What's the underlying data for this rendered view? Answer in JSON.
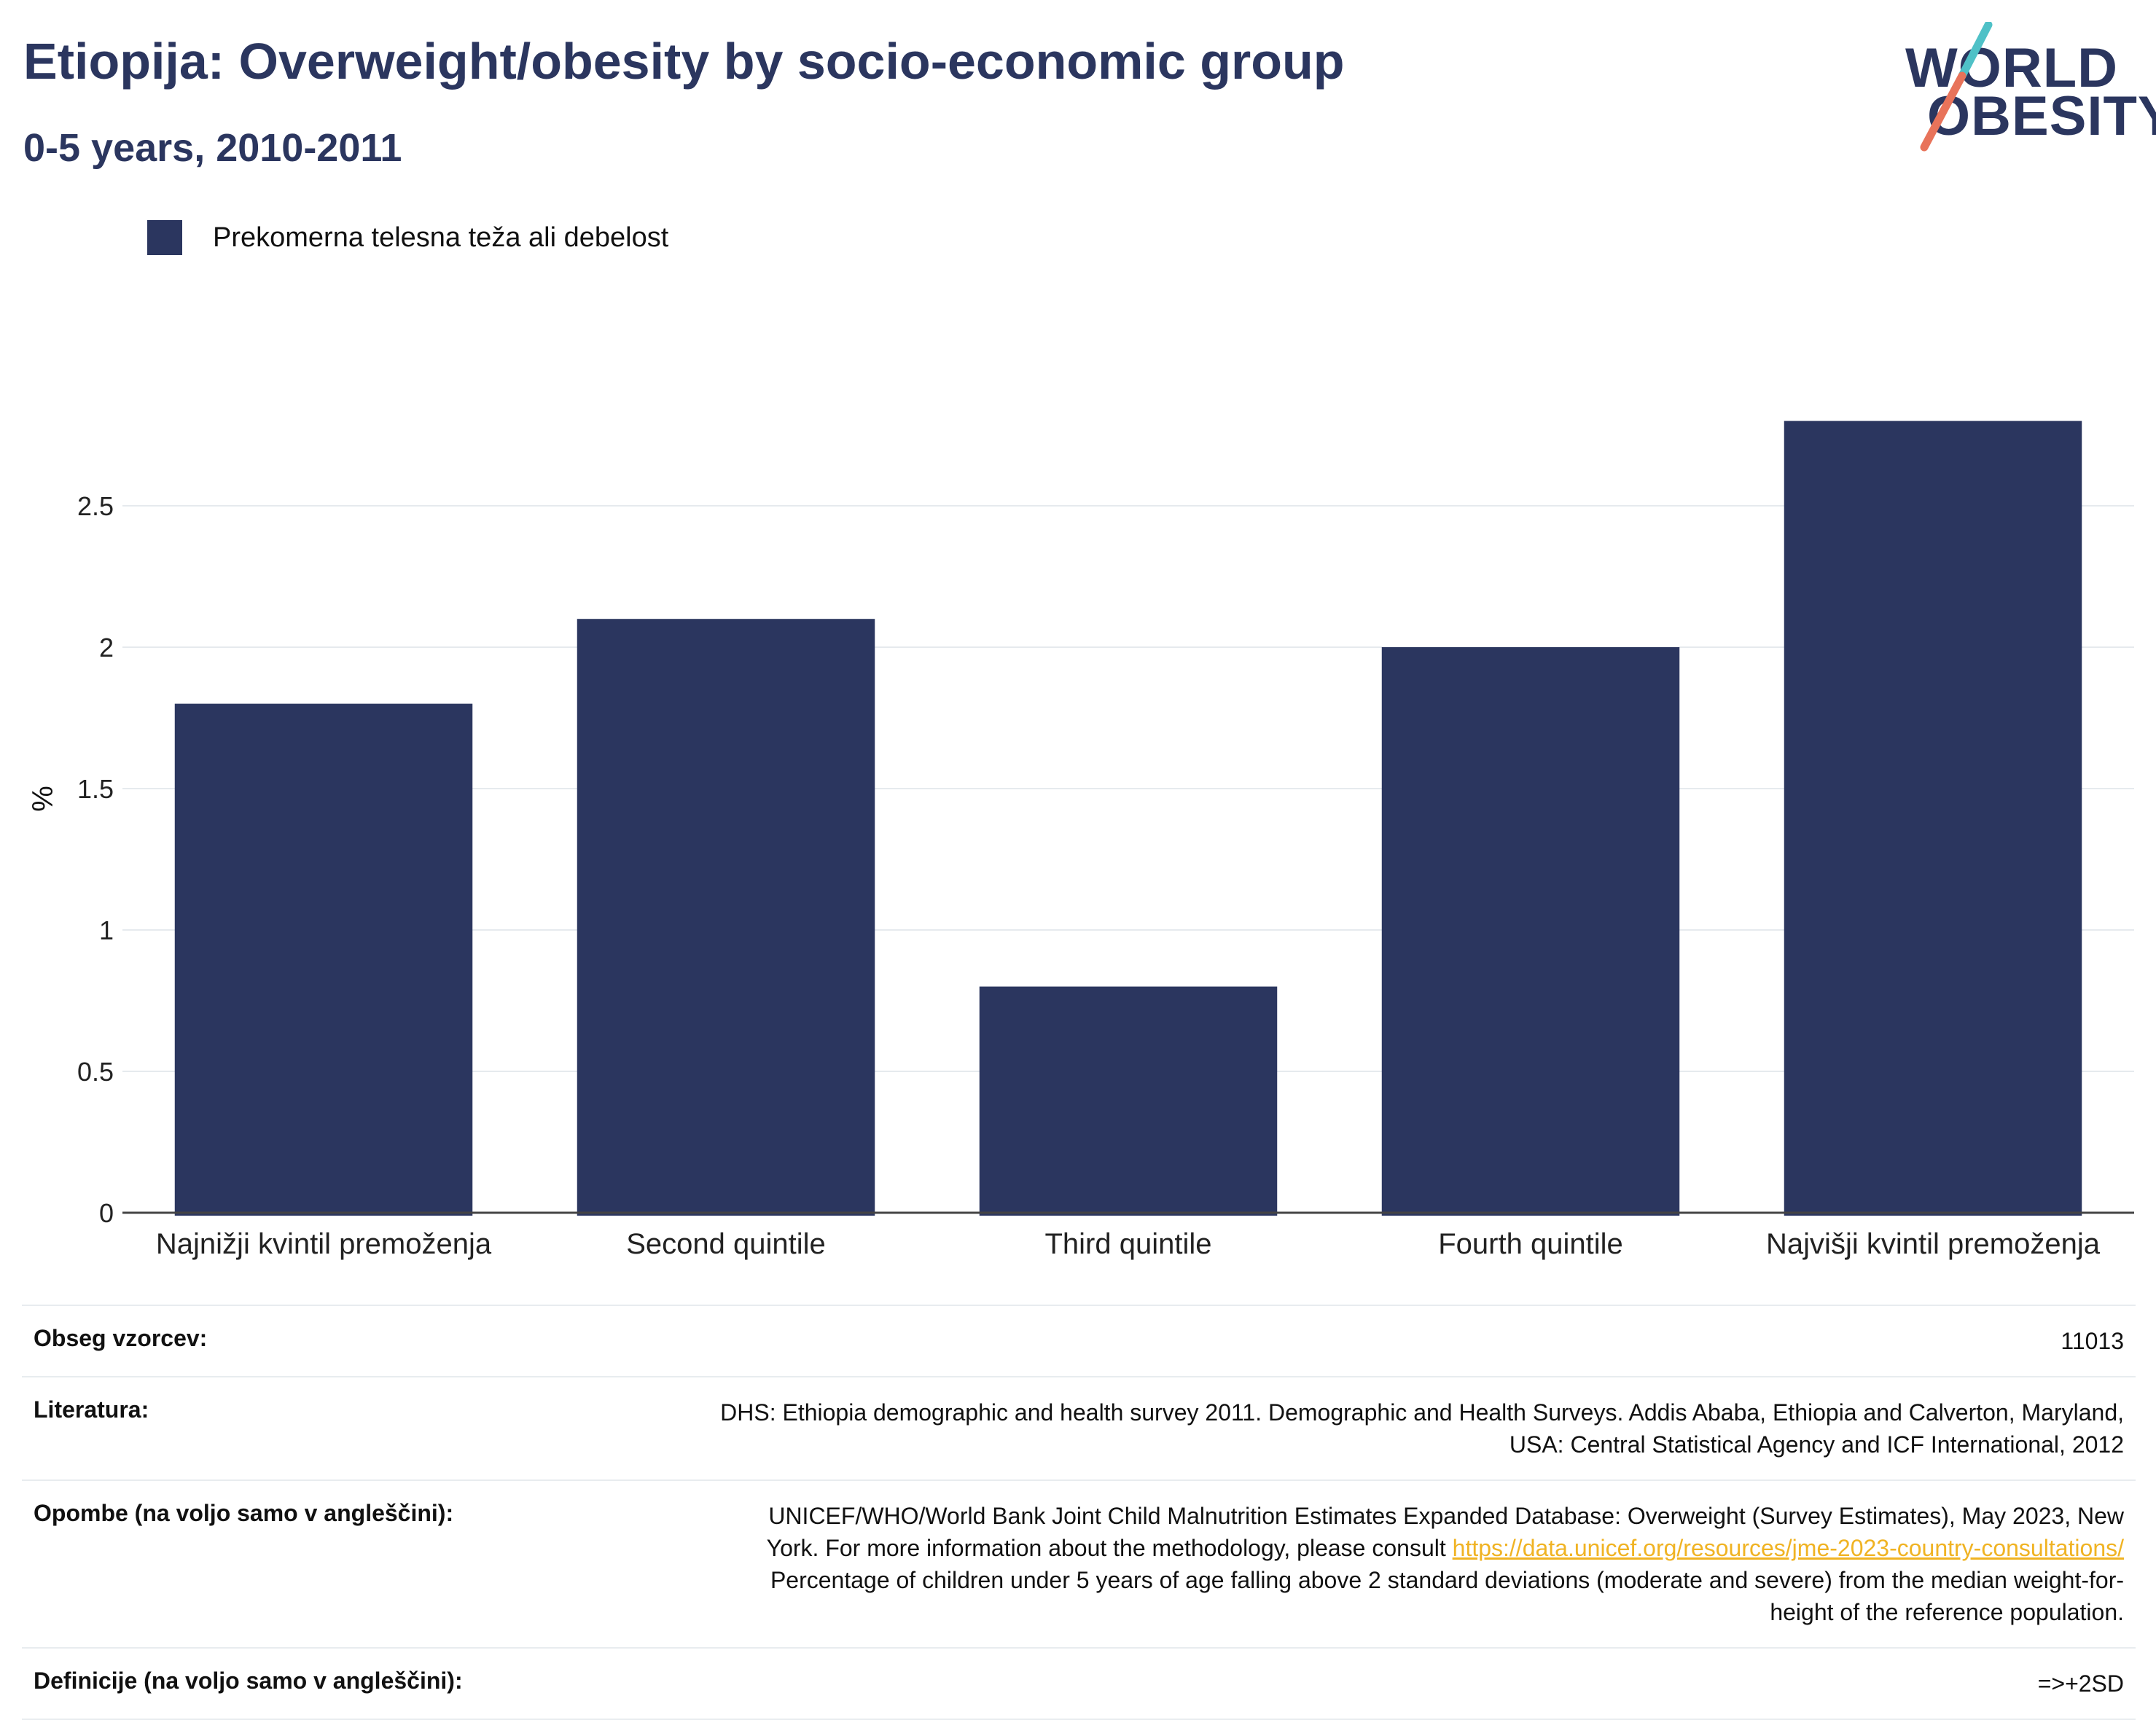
{
  "header": {
    "title": "Etiopija: Overweight/obesity by socio-economic group",
    "subtitle": "0-5 years, 2010-2011"
  },
  "logo": {
    "line1": "WORLD",
    "line2": "OBESITY",
    "slash_colors": [
      "#4fc1c7",
      "#e8735a"
    ]
  },
  "chart_data": {
    "type": "bar",
    "title": "Etiopija: Overweight/obesity by socio-economic group",
    "subtitle": "0-5 years, 2010-2011",
    "categories": [
      "Najnižji kvintil premoženja",
      "Second quintile",
      "Third quintile",
      "Fourth quintile",
      "Najvišji kvintil premoženja"
    ],
    "series": [
      {
        "name": "Prekomerna telesna teža ali debelost",
        "values": [
          1.8,
          2.1,
          0.8,
          2.0,
          2.8
        ],
        "color": "#2b365f"
      }
    ],
    "xlabel": "",
    "ylabel": "%",
    "ylim": [
      0,
      3.0
    ],
    "yticks": [
      0,
      0.5,
      1,
      1.5,
      2,
      2.5
    ],
    "ytick_labels": [
      "0",
      "0.5",
      "1",
      "1.5",
      "2",
      "2.5"
    ],
    "grid": true,
    "legend_position": "top-left"
  },
  "info": {
    "sample_label": "Obseg vzorcev:",
    "sample_value": "11013",
    "lit_label": "Literatura:",
    "lit_line1": "DHS: Ethiopia demographic and health survey 2011. Demographic and Health Surveys. Addis Ababa, Ethiopia and Calverton, Maryland,",
    "lit_line2": "USA: Central Statistical Agency and ICF International, 2012",
    "notes_label": "Opombe (na voljo samo v angleščini):",
    "notes_line1": "UNICEF/WHO/World Bank Joint Child Malnutrition Estimates Expanded Database: Overweight (Survey Estimates), May 2023, New",
    "notes_line2": "York. For more information about the methodology, please consult",
    "notes_link": "https://data.unicef.org/resources/jme-2023-country-consultations/",
    "notes_line3": "Percentage of children under 5 years of age falling above 2 standard deviations (moderate and severe) from the median weight-for-",
    "notes_line4": "height of the reference population.",
    "def_label": "Definicije (na voljo samo v angleščini):",
    "def_value": "=>+2SD"
  }
}
